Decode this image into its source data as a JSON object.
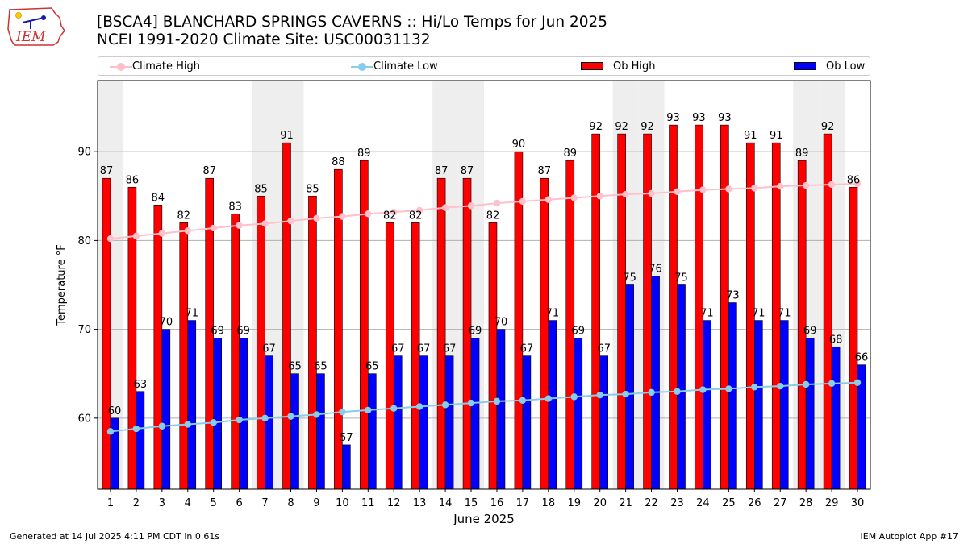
{
  "header": {
    "logo_text": "IEM",
    "title_line1": "[BSCA4] BLANCHARD SPRINGS CAVERNS :: Hi/Lo Temps for Jun 2025",
    "title_line2": "NCEI 1991-2020 Climate Site: USC00031132"
  },
  "legend": {
    "climate_high": "Climate High",
    "climate_low": "Climate Low",
    "ob_high": "Ob High",
    "ob_low": "Ob Low"
  },
  "footer": {
    "left": "Generated at 14 Jul 2025 4:11 PM CDT in 0.61s",
    "right": "IEM Autoplot App #17"
  },
  "colors": {
    "ob_high": "#ff0000",
    "ob_low": "#0000ff",
    "climate_high": "#ffc0cb",
    "climate_low": "#87ceeb",
    "weekend_shade": "#eeeeee"
  },
  "chart_data": {
    "type": "bar",
    "xlabel": "June 2025",
    "ylabel": "Temperature °F",
    "ylim": [
      52,
      98
    ],
    "yticks": [
      60,
      70,
      80,
      90
    ],
    "grid": true,
    "legend_position": "top",
    "categories": [
      1,
      2,
      3,
      4,
      5,
      6,
      7,
      8,
      9,
      10,
      11,
      12,
      13,
      14,
      15,
      16,
      17,
      18,
      19,
      20,
      21,
      22,
      23,
      24,
      25,
      26,
      27,
      28,
      29,
      30
    ],
    "weekend_days": [
      1,
      7,
      8,
      14,
      15,
      21,
      22,
      28,
      29
    ],
    "series": [
      {
        "name": "Ob High",
        "kind": "bar",
        "values": [
          87,
          86,
          84,
          82,
          87,
          83,
          85,
          91,
          85,
          88,
          89,
          82,
          82,
          87,
          87,
          82,
          90,
          87,
          89,
          92,
          92,
          92,
          93,
          93,
          93,
          91,
          91,
          89,
          92,
          86
        ]
      },
      {
        "name": "Ob Low",
        "kind": "bar",
        "values": [
          60,
          63,
          70,
          71,
          69,
          69,
          67,
          65,
          65,
          57,
          65,
          67,
          67,
          67,
          69,
          70,
          67,
          71,
          69,
          67,
          75,
          76,
          75,
          71,
          73,
          71,
          71,
          69,
          68,
          66
        ]
      },
      {
        "name": "Climate High",
        "kind": "line",
        "values": [
          80.2,
          80.5,
          80.8,
          81.1,
          81.4,
          81.7,
          81.9,
          82.2,
          82.5,
          82.7,
          83.0,
          83.2,
          83.4,
          83.7,
          83.9,
          84.2,
          84.4,
          84.6,
          84.8,
          85.0,
          85.2,
          85.3,
          85.5,
          85.7,
          85.8,
          85.9,
          86.1,
          86.2,
          86.3,
          86.4
        ]
      },
      {
        "name": "Climate Low",
        "kind": "line",
        "values": [
          58.5,
          58.8,
          59.1,
          59.3,
          59.5,
          59.8,
          60.0,
          60.2,
          60.4,
          60.7,
          60.9,
          61.1,
          61.3,
          61.5,
          61.7,
          61.9,
          62.0,
          62.2,
          62.4,
          62.6,
          62.7,
          62.9,
          63.0,
          63.2,
          63.3,
          63.5,
          63.6,
          63.8,
          63.9,
          64.0
        ]
      }
    ]
  }
}
